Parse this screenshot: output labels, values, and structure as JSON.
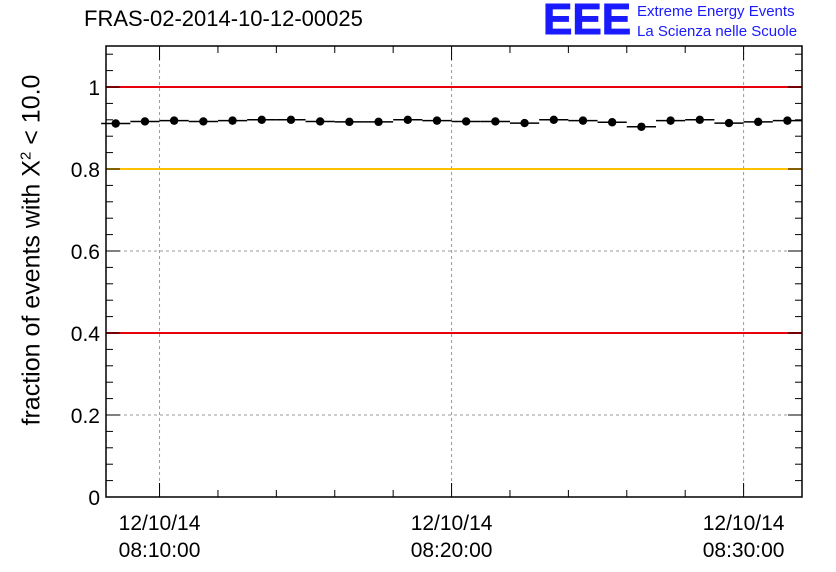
{
  "chart_data": {
    "type": "scatter",
    "title": "FRAS-02-2014-10-12-00025",
    "ylabel_prefix": "fraction of events with ",
    "ylabel_symbol": "X",
    "ylabel_sup": "2",
    "ylabel_suffix": " < 10.0",
    "ylim": [
      0,
      1.1
    ],
    "y_ticks": [
      "0",
      "0.2",
      "0.4",
      "0.6",
      "0.8",
      "1"
    ],
    "y_tick_values": [
      0,
      0.2,
      0.4,
      0.6,
      0.8,
      1.0
    ],
    "x_range_minutes": [
      8.1667,
      32.0
    ],
    "x_ticks": [
      {
        "date": "12/10/14",
        "time": "08:10:00",
        "minute": 10
      },
      {
        "date": "12/10/14",
        "time": "08:20:00",
        "minute": 20
      },
      {
        "date": "12/10/14",
        "time": "08:30:00",
        "minute": 30
      }
    ],
    "grid": true,
    "reference_lines": [
      {
        "y": 1.0,
        "color": "#e8000b"
      },
      {
        "y": 0.8,
        "color": "#ffc000"
      },
      {
        "y": 0.4,
        "color": "#e8000b"
      }
    ],
    "bin_width_minutes": 1,
    "series": [
      {
        "x": [
          8.5,
          9.5,
          10.5,
          11.5,
          12.5,
          13.5,
          14.5,
          15.5,
          16.5,
          17.5,
          18.5,
          19.5,
          20.5,
          21.5,
          22.5,
          23.5,
          24.5,
          25.5,
          26.5,
          27.5,
          28.5,
          29.5,
          30.5,
          31.5
        ],
        "values": [
          0.911,
          0.916,
          0.918,
          0.916,
          0.918,
          0.92,
          0.92,
          0.916,
          0.915,
          0.915,
          0.92,
          0.918,
          0.916,
          0.916,
          0.912,
          0.92,
          0.918,
          0.914,
          0.903,
          0.918,
          0.92,
          0.912,
          0.915,
          0.918
        ]
      }
    ]
  },
  "logo": {
    "mark": "EEE",
    "line1": "Extreme Energy Events",
    "line2": "La Scienza nelle Scuole"
  }
}
